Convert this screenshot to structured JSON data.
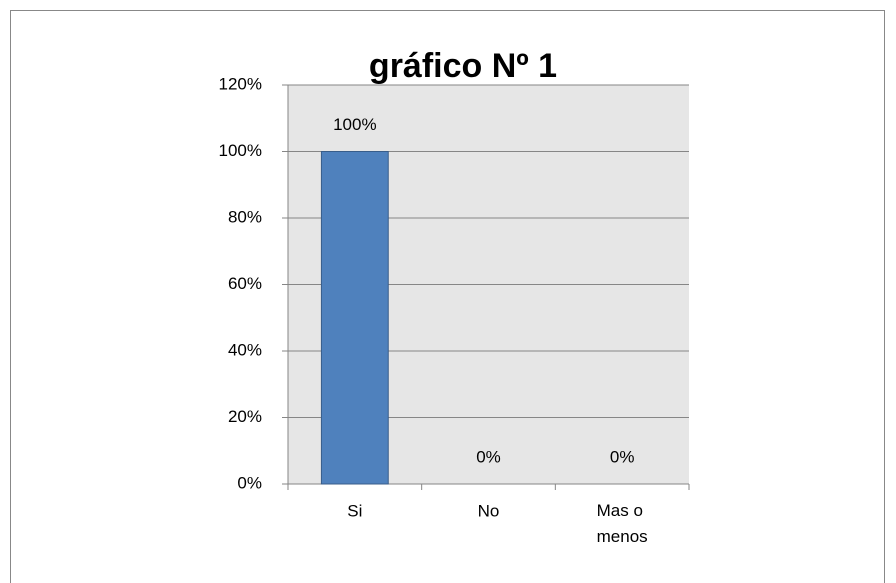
{
  "chart_data": {
    "type": "bar",
    "title": "gráfico Nº 1",
    "categories": [
      "Si",
      "No",
      "Mas o menos"
    ],
    "values": [
      100,
      0,
      0
    ],
    "value_labels": [
      "100%",
      "0%",
      "0%"
    ],
    "color": "#4f81bd",
    "ylim": [
      0,
      120
    ],
    "yticks": [
      {
        "value": 0,
        "label": "0%"
      },
      {
        "value": 20,
        "label": "20%"
      },
      {
        "value": 40,
        "label": "40%"
      },
      {
        "value": 60,
        "label": "60%"
      },
      {
        "value": 80,
        "label": "80%"
      },
      {
        "value": 100,
        "label": "100%"
      },
      {
        "value": 120,
        "label": "120%"
      }
    ],
    "grid": true
  }
}
